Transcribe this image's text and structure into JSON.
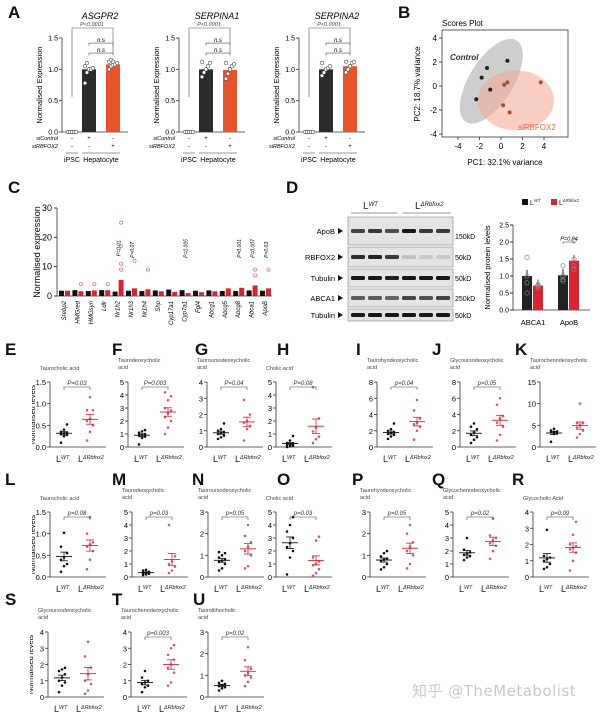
{
  "panel_letters": [
    "A",
    "B",
    "C",
    "D",
    "E",
    "F",
    "G",
    "H",
    "I",
    "J",
    "K",
    "L",
    "M",
    "N",
    "O",
    "P",
    "Q",
    "R",
    "S",
    "T",
    "U"
  ],
  "watermark": "知乎 @TheMetabolist",
  "colors": {
    "wt": "#2b2b2b",
    "ko_bar": "#e8542a",
    "ko_red": "#d9232e",
    "ko_dot": "#d35a6a",
    "control_ellipse": "#9d9d9d",
    "ko_ellipse": "#f2a88f"
  },
  "chart_data": [
    {
      "panel": "A",
      "type": "bar",
      "ylabel": "Normalised Expression",
      "ylim": [
        0,
        1.5
      ],
      "yticks": [
        "0.0",
        "0.5",
        "1.0",
        "1.5"
      ],
      "row_labels": [
        "siControl",
        "siRBFOX2"
      ],
      "conditions": [
        {
          "siControl": "-",
          "siRBFOX2": "-"
        },
        {
          "siControl": "+",
          "siRBFOX2": "-"
        },
        {
          "siControl": "-",
          "siRBFOX2": "+"
        }
      ],
      "group_labels": [
        "iPSC",
        "Hepatocyte"
      ],
      "p_main": "P<0.0001",
      "p_ns": "n.s",
      "subplots": [
        {
          "title": "ASGPR2",
          "values": [
            0,
            1.0,
            1.08
          ],
          "points": [
            [
              0,
              0,
              0,
              0,
              0
            ],
            [
              0.78,
              0.95,
              1.0,
              1.0,
              1.02,
              1.05,
              1.1
            ],
            [
              1.0,
              1.05,
              1.07,
              1.08,
              1.1,
              1.12,
              1.15,
              1.12
            ]
          ]
        },
        {
          "title": "SERPINA1",
          "values": [
            0,
            1.0,
            0.99
          ],
          "points": [
            [
              0,
              0,
              0,
              0,
              0
            ],
            [
              0.88,
              0.95,
              1.0,
              1.05,
              1.1,
              1.12
            ],
            [
              0.85,
              0.93,
              1.0,
              1.05,
              1.08,
              1.1
            ]
          ]
        },
        {
          "title": "SERPINA2",
          "values": [
            0,
            1.0,
            1.05
          ],
          "points": [
            [
              0,
              0,
              0,
              0,
              0
            ],
            [
              0.9,
              0.95,
              1.0,
              1.02,
              1.05,
              1.1
            ],
            [
              0.95,
              1.0,
              1.05,
              1.1,
              1.12,
              1.12
            ]
          ]
        }
      ]
    },
    {
      "panel": "B",
      "type": "scatter",
      "title": "Scores Plot",
      "xlabel": "PC1: 32.1% variance",
      "ylabel": "PC2: 18.7% variance",
      "xlim": [
        -5,
        5
      ],
      "ylim": [
        -4.3,
        4.5
      ],
      "xticks": [
        -4,
        -2,
        0,
        2,
        4
      ],
      "yticks": [
        -4,
        -2,
        0,
        2,
        4
      ],
      "series": [
        {
          "name": "Control",
          "points": [
            [
              -2.3,
              -1.1
            ],
            [
              -1.8,
              0.7
            ],
            [
              -1.3,
              1.5
            ],
            [
              -1.0,
              -0.3
            ],
            [
              0.6,
              2.1
            ]
          ]
        },
        {
          "name": "siRBFOX2",
          "points": [
            [
              0.3,
              0.1
            ],
            [
              0.6,
              0.3
            ],
            [
              0.2,
              -1.6
            ],
            [
              0.8,
              -2.2
            ],
            [
              3.7,
              0.3
            ]
          ]
        }
      ]
    },
    {
      "panel": "C",
      "type": "bar",
      "ylabel": "Normalised expression",
      "ylim": [
        0,
        30
      ],
      "yticks": [
        0,
        10,
        20,
        30
      ],
      "categories": [
        "Srebp2",
        "HMGred",
        "HMGsyn",
        "Ldlr",
        "Nr1h2",
        "Nr1h3",
        "Nr1h4",
        "Shp",
        "Cyp17a1",
        "Cyp7a1",
        "Fgf4",
        "Abcg1",
        "Abcg5",
        "Abcg8",
        "Abca1",
        "ApoB"
      ],
      "series": [
        {
          "values": [
            1.8,
            2.0,
            1.7,
            2.0,
            1.5,
            1.8,
            1.7,
            1.9,
            2.2,
            2.0,
            1.8,
            1.9,
            1.7,
            1.7,
            1.9,
            1.8
          ]
        },
        {
          "values": [
            1.8,
            1.6,
            1.9,
            2.0,
            5.5,
            2.6,
            2.3,
            1.6,
            1.4,
            1.0,
            1.3,
            1.6,
            2.6,
            2.8,
            3.6,
            2.6
          ]
        }
      ],
      "outliers": [
        {
          "gene": "HMGred",
          "value": 4
        },
        {
          "gene": "HMGsyn",
          "value": 4
        },
        {
          "gene": "Ldlr",
          "value": 4
        },
        {
          "gene": "Nr1h2",
          "value": 25
        },
        {
          "gene": "Nr1h2",
          "value": 17
        },
        {
          "gene": "Nr1h2",
          "value": 11
        },
        {
          "gene": "Nr1h2",
          "value": 9
        },
        {
          "gene": "Nr1h3",
          "value": 12
        },
        {
          "gene": "Nr1h4",
          "value": 9
        },
        {
          "gene": "Abca1",
          "value": 9
        },
        {
          "gene": "Abca1",
          "value": 7
        },
        {
          "gene": "ApoB",
          "value": 9
        }
      ],
      "annotations": [
        {
          "gene": "Nr1h2",
          "text": "P=0.01"
        },
        {
          "gene": "Nr1h3",
          "text": "P=0.07"
        },
        {
          "gene": "Cyp7a1",
          "text": "P=0.005"
        },
        {
          "gene": "Abcg8",
          "text": "P=0.001"
        },
        {
          "gene": "Abca1",
          "text": "P=0.007"
        },
        {
          "gene": "ApoB",
          "text": "P=0.03"
        }
      ]
    },
    {
      "panel": "D",
      "type": "bar",
      "blot": {
        "groups": [
          {
            "label": "L",
            "sup": "WT"
          },
          {
            "label": "L",
            "sup": "ΔRbfox2"
          }
        ],
        "rows": [
          {
            "label": "ApoB",
            "size": "150kD",
            "intensity": [
              0.7,
              0.75,
              0.65,
              0.9,
              0.75,
              0.75
            ]
          },
          {
            "label": "RBFOX2",
            "size": "50kD",
            "intensity": [
              0.8,
              0.85,
              0.75,
              0.15,
              0.12,
              0.12
            ]
          },
          {
            "label": "Tubulin",
            "size": "50kD",
            "intensity": [
              0.9,
              0.9,
              0.85,
              0.9,
              0.9,
              0.9
            ]
          },
          {
            "label": "ABCA1",
            "size": "250kD",
            "intensity": [
              0.6,
              0.6,
              0.55,
              0.7,
              0.65,
              0.7
            ]
          },
          {
            "label": "Tubulin",
            "size": "50kD",
            "intensity": [
              0.9,
              0.9,
              0.9,
              0.9,
              0.9,
              0.9
            ]
          }
        ]
      },
      "ylabel": "Normalised protein levels",
      "ylim": [
        0,
        2.5
      ],
      "yticks": [
        "0.0",
        "0.5",
        "1.0",
        "1.5",
        "2.0",
        "2.5"
      ],
      "legend": [
        {
          "label": "L",
          "sup": "WT"
        },
        {
          "label": "L",
          "sup": "ΔRbfox2"
        }
      ],
      "categories": [
        "ABCA1",
        "ApoB"
      ],
      "series": [
        {
          "values": [
            1.0,
            1.02
          ],
          "points": [
            [
              0.5,
              0.8,
              1.0,
              1.55
            ],
            [
              0.85,
              0.9,
              1.0,
              1.3
            ]
          ]
        },
        {
          "values": [
            0.72,
            1.45
          ],
          "points": [
            [
              0.65,
              0.7,
              0.75,
              0.72
            ],
            [
              1.2,
              1.3,
              1.5,
              2.05
            ]
          ]
        }
      ],
      "annotations": [
        {
          "category": "ApoB",
          "text": "P=0.04"
        }
      ]
    }
  ],
  "dot_plots": {
    "ylabel": "Normalised levels",
    "xlabels": [
      {
        "label": "L",
        "sup": "WT"
      },
      {
        "label": "L",
        "sup": "ΔRbfox2"
      }
    ],
    "panels": [
      {
        "letter": "E",
        "title": "Taurocholic acid",
        "ylim": [
          0,
          1.5
        ],
        "yticks": [
          "0.0",
          "0.5",
          "1.0",
          "1.5"
        ],
        "p": "P=0.03",
        "wt": [
          0.1,
          0.25,
          0.28,
          0.3,
          0.32,
          0.33,
          0.35,
          0.4,
          0.52
        ],
        "ko": [
          0.15,
          0.35,
          0.5,
          0.6,
          0.65,
          0.85,
          0.85,
          1.15
        ]
      },
      {
        "letter": "F",
        "title": "Taurodeoxycholic acid",
        "ylim": [
          0,
          5
        ],
        "yticks": [
          "0",
          "1",
          "2",
          "3",
          "4",
          "5"
        ],
        "p": "P=0.003",
        "wt": [
          0.2,
          0.7,
          0.8,
          0.9,
          0.95,
          1.0,
          1.1,
          1.2,
          1.3
        ],
        "ko": [
          1.0,
          1.5,
          2.0,
          2.3,
          2.6,
          2.8,
          3.0,
          3.6,
          3.9,
          4.2
        ]
      },
      {
        "letter": "G",
        "title": "Tauroursodeoxycholic acid",
        "ylim": [
          0,
          4
        ],
        "yticks": [
          "0",
          "1",
          "2",
          "3",
          "4"
        ],
        "p": "P=0.04",
        "wt": [
          0.5,
          0.6,
          0.7,
          0.8,
          0.85,
          0.9,
          1.0,
          1.1,
          1.45
        ],
        "ko": [
          0.4,
          1.1,
          1.3,
          1.5,
          1.6,
          2.0,
          2.9
        ]
      },
      {
        "letter": "H",
        "title": "Cholic acid",
        "ylim": [
          0,
          5
        ],
        "yticks": [
          "0",
          "1",
          "2",
          "3",
          "4",
          "5"
        ],
        "p": "P=0.08",
        "wt": [
          0.0,
          0.05,
          0.1,
          0.15,
          0.2,
          0.25,
          0.3,
          0.5,
          0.85
        ],
        "ko": [
          0.3,
          0.6,
          0.8,
          1.2,
          1.5,
          2.2,
          4.6
        ]
      },
      {
        "letter": "I",
        "title": "Taurohyodeoxycholic acid",
        "ylim": [
          0,
          8
        ],
        "yticks": [
          "0",
          "2",
          "4",
          "6",
          "8"
        ],
        "p": "p=0.04",
        "wt": [
          1.0,
          1.3,
          1.5,
          1.6,
          1.7,
          1.8,
          2.0,
          2.2,
          2.9
        ],
        "ko": [
          0.9,
          2.0,
          2.5,
          2.8,
          3.0,
          3.5,
          4.5,
          5.8
        ]
      },
      {
        "letter": "J",
        "title": "Glycoursodeoxycholic acid",
        "ylim": [
          0,
          8
        ],
        "yticks": [
          "0",
          "2",
          "4",
          "6",
          "8"
        ],
        "p": "p=0.05",
        "wt": [
          0.5,
          0.9,
          1.2,
          1.5,
          1.8,
          2.2,
          2.5,
          2.9
        ],
        "ko": [
          0.8,
          1.5,
          2.5,
          3.0,
          3.5,
          3.8,
          5.2,
          6.0
        ]
      },
      {
        "letter": "K",
        "title": "Taurochenodeoxycholic acid",
        "ylim": [
          0,
          15
        ],
        "yticks": [
          "0",
          "5",
          "10",
          "15"
        ],
        "p": "",
        "wt": [
          1.2,
          3.0,
          3.2,
          3.4,
          3.5,
          3.6,
          3.8,
          4.2
        ],
        "ko": [
          2.2,
          3.0,
          3.8,
          4.5,
          5.0,
          5.5,
          5.5,
          10.0
        ]
      },
      {
        "letter": "L",
        "title": "Taurocholic acid",
        "ylim": [
          0,
          1.5
        ],
        "yticks": [
          "0.0",
          "0.5",
          "1.0",
          "1.5"
        ],
        "p": "p=0.08",
        "wt": [
          0.12,
          0.25,
          0.3,
          0.4,
          0.45,
          0.55,
          0.7,
          1.02
        ],
        "ko": [
          0.18,
          0.4,
          0.6,
          0.7,
          0.75,
          0.8,
          1.0,
          1.38
        ]
      },
      {
        "letter": "M",
        "title": "Taurodeoxycholic acid",
        "ylim": [
          0,
          5
        ],
        "yticks": [
          "0",
          "1",
          "2",
          "3",
          "4",
          "5"
        ],
        "p": "p=0.03",
        "wt": [
          0.15,
          0.2,
          0.25,
          0.3,
          0.35,
          0.4,
          0.5,
          0.55
        ],
        "ko": [
          0.3,
          0.5,
          0.8,
          1.0,
          1.2,
          1.6,
          4.0
        ]
      },
      {
        "letter": "N",
        "title": "Tauroursodeoxycholic acid",
        "ylim": [
          0,
          3
        ],
        "yticks": [
          "0",
          "1",
          "2",
          "3"
        ],
        "p": "p=0.05",
        "wt": [
          0.3,
          0.4,
          0.6,
          0.7,
          0.75,
          0.8,
          0.9,
          1.0,
          1.1,
          1.15
        ],
        "ko": [
          0.4,
          0.5,
          1.0,
          1.2,
          1.4,
          1.6,
          1.9,
          2.4
        ]
      },
      {
        "letter": "O",
        "title": "Cholic acid",
        "ylim": [
          0,
          5
        ],
        "yticks": [
          "0",
          "1",
          "2",
          "3",
          "4",
          "5"
        ],
        "p": "p=0.03",
        "wt": [
          0.2,
          1.5,
          2.0,
          2.3,
          2.6,
          3.0,
          3.5,
          4.0,
          4.6
        ],
        "ko": [
          0.1,
          0.3,
          0.6,
          0.9,
          1.0,
          1.2,
          1.5,
          2.8,
          3.1
        ]
      },
      {
        "letter": "P",
        "title": "Taurohyodeoxycholic acid",
        "ylim": [
          0,
          3
        ],
        "yticks": [
          "0",
          "1",
          "2",
          "3"
        ],
        "p": "p=0.05",
        "wt": [
          0.35,
          0.45,
          0.6,
          0.75,
          0.8,
          0.85,
          0.95,
          1.1,
          1.2
        ],
        "ko": [
          0.4,
          0.6,
          1.0,
          1.2,
          1.4,
          1.6,
          2.0,
          2.4
        ]
      },
      {
        "letter": "Q",
        "title": "Glycochenodeoxycholic acid",
        "ylim": [
          0,
          5
        ],
        "yticks": [
          "0",
          "1",
          "2",
          "3",
          "4",
          "5"
        ],
        "p": "p=0.02",
        "wt": [
          1.3,
          1.5,
          1.6,
          1.7,
          1.8,
          1.9,
          2.1,
          3.0
        ],
        "ko": [
          1.4,
          2.0,
          2.4,
          2.6,
          2.8,
          3.0,
          3.2,
          4.5
        ]
      },
      {
        "letter": "R",
        "title": "Glycocholic Acid",
        "ylim": [
          0,
          4
        ],
        "yticks": [
          "0",
          "1",
          "2",
          "3",
          "4"
        ],
        "p": "p=0.09",
        "wt": [
          0.5,
          0.6,
          0.8,
          1.0,
          1.1,
          1.2,
          1.3,
          2.9
        ],
        "ko": [
          0.4,
          1.0,
          1.5,
          1.7,
          1.8,
          1.9,
          2.0,
          2.6,
          3.4
        ]
      },
      {
        "letter": "S",
        "title": "Glycoursodeoxycholic acid",
        "ylim": [
          0,
          4
        ],
        "yticks": [
          "0",
          "1",
          "2",
          "3",
          "4"
        ],
        "p": "",
        "wt": [
          0.3,
          0.7,
          0.9,
          1.0,
          1.2,
          1.4,
          1.6,
          1.7,
          1.8
        ],
        "ko": [
          0.2,
          0.4,
          0.8,
          1.0,
          1.4,
          1.8,
          2.5,
          3.4
        ]
      },
      {
        "letter": "T",
        "title": "Taurochenodeoxycholic acid",
        "ylim": [
          0,
          4
        ],
        "yticks": [
          "0",
          "1",
          "2",
          "3",
          "4"
        ],
        "p": "p=0.003",
        "wt": [
          0.3,
          0.6,
          0.7,
          0.8,
          0.9,
          1.0,
          1.2,
          1.6
        ],
        "ko": [
          0.7,
          0.9,
          1.5,
          1.8,
          2.0,
          2.3,
          2.6,
          3.0,
          3.2
        ]
      },
      {
        "letter": "U",
        "title": "Taurolithocholic acid",
        "ylim": [
          0,
          3
        ],
        "yticks": [
          "0",
          "1",
          "2",
          "3"
        ],
        "p": "p=0.02",
        "wt": [
          0.3,
          0.4,
          0.45,
          0.5,
          0.55,
          0.6,
          0.65,
          0.75
        ],
        "ko": [
          0.5,
          0.7,
          0.9,
          1.0,
          1.1,
          1.3,
          1.7,
          2.3
        ]
      }
    ]
  }
}
